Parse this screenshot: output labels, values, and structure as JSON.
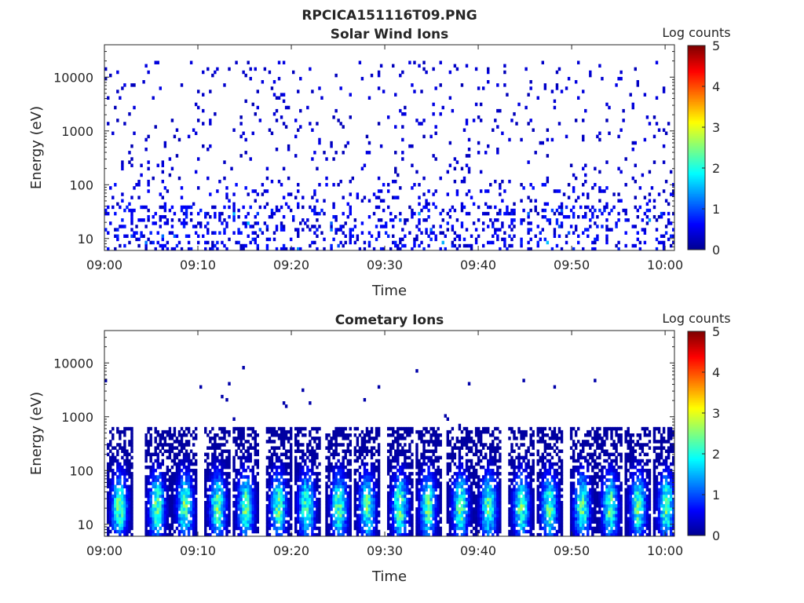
{
  "figure": {
    "title": "RPCICA151116T09.PNG"
  },
  "colormap": {
    "name": "jet",
    "stops": [
      "#00008f",
      "#0000ff",
      "#007fff",
      "#00ffff",
      "#7fff7f",
      "#ffff00",
      "#ff7f00",
      "#ff0000",
      "#7f0000"
    ]
  },
  "chart_data": [
    {
      "type": "heatmap",
      "title": "Solar Wind Ions",
      "xlabel": "Time",
      "ylabel": "Energy (eV)",
      "x_range": [
        "09:00",
        "10:01"
      ],
      "x_ticks": [
        "09:00",
        "09:10",
        "09:20",
        "09:30",
        "09:40",
        "09:50",
        "10:00"
      ],
      "y_scale": "log",
      "y_range": [
        6,
        40000
      ],
      "y_ticks": [
        10,
        100,
        1000,
        10000
      ],
      "y_tick_labels": [
        "10",
        "100",
        "1000",
        "10000"
      ],
      "colorbar": {
        "label": "Log counts",
        "range": [
          0,
          5
        ],
        "ticks": [
          "0",
          "1",
          "2",
          "3",
          "4",
          "5"
        ]
      },
      "description_values": {
        "dominant_log_counts": 0.2,
        "max_log_counts": 1.5,
        "low_energy_band_eV": [
          6,
          40
        ],
        "scatter_energy_range_eV": [
          100,
          20000
        ]
      }
    },
    {
      "type": "heatmap",
      "title": "Cometary Ions",
      "xlabel": "Time",
      "ylabel": "Energy (eV)",
      "x_range": [
        "09:00",
        "10:01"
      ],
      "x_ticks": [
        "09:00",
        "09:10",
        "09:20",
        "09:30",
        "09:40",
        "09:50",
        "10:00"
      ],
      "y_scale": "log",
      "y_range": [
        6,
        40000
      ],
      "y_ticks": [
        10,
        100,
        1000,
        10000
      ],
      "y_tick_labels": [
        "10",
        "100",
        "1000",
        "10000"
      ],
      "colorbar": {
        "label": "Log counts",
        "range": [
          0,
          5
        ],
        "ticks": [
          "0",
          "1",
          "2",
          "3",
          "4",
          "5"
        ]
      },
      "burst_times_min": [
        1.5,
        5.5,
        8.5,
        12,
        15,
        18.5,
        21.5,
        25,
        28,
        31.5,
        34.5,
        38,
        41,
        44.5,
        47.5,
        51,
        54,
        57,
        60
      ],
      "description_values": {
        "burst_peak_energy_eV": 20,
        "burst_max_energy_eV": 600,
        "max_log_counts": 2.7
      }
    }
  ]
}
